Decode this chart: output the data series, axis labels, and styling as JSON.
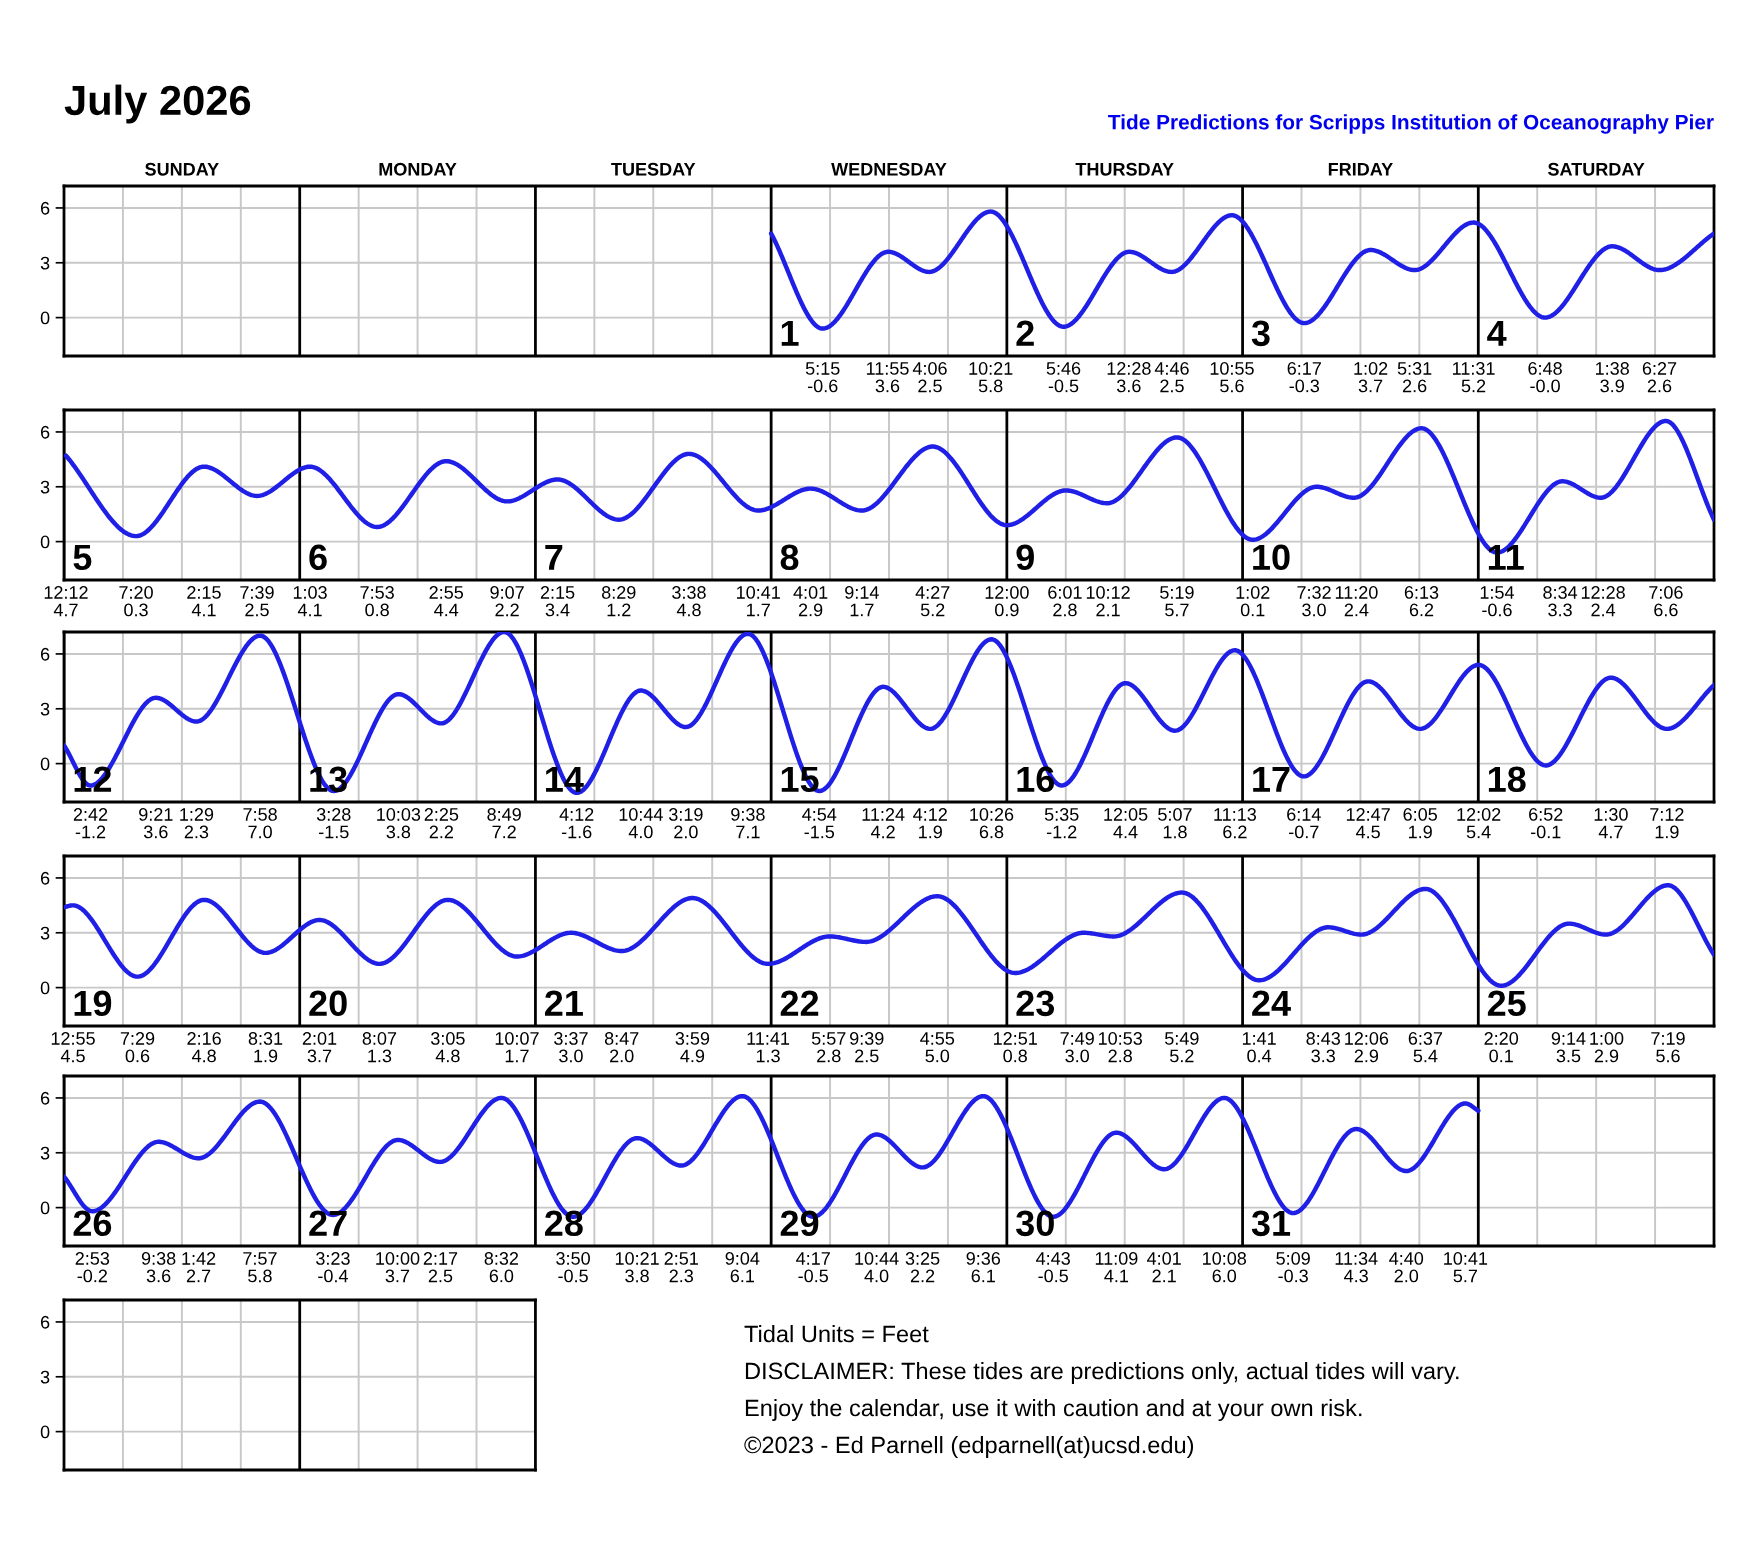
{
  "chart_data": [
    {
      "type": "line",
      "title": "July 2026",
      "subtitle": "Tide Predictions for Scripps Institution of Oceanography Pier",
      "series": [
        {
          "color": "#1f1fe6",
          "x": [
            "2026-07-01T00:00",
            "2026-07-01T05:15",
            "2026-07-01T11:55",
            "2026-07-01T16:06",
            "2026-07-01T22:21",
            "2026-07-02T05:46",
            "2026-07-02T12:28",
            "2026-07-02T16:46",
            "2026-07-02T22:55",
            "2026-07-03T06:17",
            "2026-07-03T13:02",
            "2026-07-03T17:31",
            "2026-07-03T23:31",
            "2026-07-04T06:48",
            "2026-07-04T13:38",
            "2026-07-04T18:27",
            "2026-07-05T00:00"
          ],
          "values": [
            4.6,
            -0.6,
            3.6,
            2.5,
            5.8,
            -0.5,
            3.6,
            2.5,
            5.6,
            -0.3,
            3.7,
            2.6,
            5.2,
            0.0,
            3.9,
            2.6,
            4.6
          ]
        }
      ],
      "xlim": [
        "2026-06-28",
        "2026-07-05"
      ],
      "ylim": [
        -2.1,
        7.2
      ],
      "yticks": [
        0,
        3,
        6
      ],
      "grid": true,
      "xticks": [
        {
          "value": "2026-06-28T06:00",
          "label": null
        },
        {
          "value": "2026-06-28T12:00",
          "label": null
        },
        {
          "value": "2026-06-28T18:00",
          "label": null
        },
        {
          "value": "2026-06-29T06:00",
          "label": null
        },
        {
          "value": "2026-06-29T12:00",
          "label": null
        },
        {
          "value": "2026-06-29T18:00",
          "label": null
        },
        {
          "value": "2026-06-30T06:00",
          "label": null
        },
        {
          "value": "2026-06-30T12:00",
          "label": null
        },
        {
          "value": "2026-06-30T18:00",
          "label": null
        },
        {
          "value": "2026-07-01T06:00",
          "label": null
        },
        {
          "value": "2026-07-01T12:00",
          "label": null
        },
        {
          "value": "2026-07-01T18:00",
          "label": null
        },
        {
          "value": "2026-07-02T06:00",
          "label": null
        },
        {
          "value": "2026-07-02T12:00",
          "label": null
        },
        {
          "value": "2026-07-02T18:00",
          "label": null
        },
        {
          "value": "2026-07-03T06:00",
          "label": null
        },
        {
          "value": "2026-07-03T12:00",
          "label": null
        },
        {
          "value": "2026-07-03T18:00",
          "label": null
        },
        {
          "value": "2026-07-04T06:00",
          "label": null
        },
        {
          "value": "2026-07-04T12:00",
          "label": null
        },
        {
          "value": "2026-07-04T18:00",
          "label": null
        },
        {
          "value": "2026-07-01T05:15",
          "label": "5:15\n-0.6"
        },
        {
          "value": "2026-07-01T11:55",
          "label": "11:55\n3.6"
        },
        {
          "value": "2026-07-01T16:06",
          "label": "4:06\n2.5"
        },
        {
          "value": "2026-07-01T22:21",
          "label": "10:21\n5.8"
        },
        {
          "value": "2026-07-02T05:46",
          "label": "5:46\n-0.5"
        },
        {
          "value": "2026-07-02T12:28",
          "label": "12:28\n3.6"
        },
        {
          "value": "2026-07-02T16:46",
          "label": "4:46\n2.5"
        },
        {
          "value": "2026-07-02T22:55",
          "label": "10:55\n5.6"
        },
        {
          "value": "2026-07-03T06:17",
          "label": "6:17\n-0.3"
        },
        {
          "value": "2026-07-03T13:02",
          "label": "1:02\n3.7"
        },
        {
          "value": "2026-07-03T17:31",
          "label": "5:31\n2.6"
        },
        {
          "value": "2026-07-03T23:31",
          "label": "11:31\n5.2"
        },
        {
          "value": "2026-07-04T06:48",
          "label": "6:48\n-0.0"
        },
        {
          "value": "2026-07-04T13:38",
          "label": "1:38\n3.9"
        },
        {
          "value": "2026-07-04T18:27",
          "label": "6:27\n2.6"
        }
      ],
      "annotations": [
        "SUNDAY",
        "MONDAY",
        "TUESDAY",
        "WEDNESDAY",
        "THURSDAY",
        "FRIDAY",
        "SATURDAY"
      ],
      "ref_lines": [
        {
          "axis": "x",
          "value": "2026-06-29",
          "color": "#000000"
        },
        {
          "axis": "x",
          "value": "2026-06-30",
          "color": "#000000"
        },
        {
          "axis": "x",
          "value": "2026-07-01",
          "color": "#000000",
          "label": "1"
        },
        {
          "axis": "x",
          "value": "2026-07-02",
          "color": "#000000",
          "label": "2"
        },
        {
          "axis": "x",
          "value": "2026-07-03",
          "color": "#000000",
          "label": "3"
        },
        {
          "axis": "x",
          "value": "2026-07-04",
          "color": "#000000",
          "label": "4"
        }
      ]
    },
    {
      "type": "line",
      "series": [
        {
          "color": "#1f1fe6",
          "x": [
            "2026-07-05T00:12",
            "2026-07-05T07:20",
            "2026-07-05T14:15",
            "2026-07-05T19:39",
            "2026-07-06T01:03",
            "2026-07-06T07:53",
            "2026-07-06T14:55",
            "2026-07-06T21:07",
            "2026-07-07T02:15",
            "2026-07-07T08:29",
            "2026-07-07T15:38",
            "2026-07-07T22:41",
            "2026-07-08T04:01",
            "2026-07-08T09:14",
            "2026-07-08T16:27",
            "2026-07-09T00:00",
            "2026-07-09T06:01",
            "2026-07-09T10:12",
            "2026-07-09T17:19",
            "2026-07-10T01:02",
            "2026-07-10T07:32",
            "2026-07-10T11:20",
            "2026-07-10T18:13",
            "2026-07-11T01:54",
            "2026-07-11T08:34",
            "2026-07-11T12:28",
            "2026-07-11T19:06",
            "2026-07-12T00:00"
          ],
          "values": [
            4.7,
            0.3,
            4.1,
            2.5,
            4.1,
            0.8,
            4.4,
            2.2,
            3.4,
            1.2,
            4.8,
            1.7,
            2.9,
            1.7,
            5.2,
            0.9,
            2.8,
            2.1,
            5.7,
            0.1,
            3.0,
            2.4,
            6.2,
            -0.6,
            3.3,
            2.4,
            6.6,
            1.2
          ]
        }
      ],
      "xlim": [
        "2026-07-05",
        "2026-07-12"
      ],
      "ylim": [
        -2.1,
        7.2
      ],
      "yticks": [
        0,
        3,
        6
      ],
      "grid": true,
      "xticks": [
        {
          "value": "2026-07-05T06:00",
          "label": null
        },
        {
          "value": "2026-07-05T12:00",
          "label": null
        },
        {
          "value": "2026-07-05T18:00",
          "label": null
        },
        {
          "value": "2026-07-06T06:00",
          "label": null
        },
        {
          "value": "2026-07-06T12:00",
          "label": null
        },
        {
          "value": "2026-07-06T18:00",
          "label": null
        },
        {
          "value": "2026-07-07T06:00",
          "label": null
        },
        {
          "value": "2026-07-07T12:00",
          "label": null
        },
        {
          "value": "2026-07-07T18:00",
          "label": null
        },
        {
          "value": "2026-07-08T06:00",
          "label": null
        },
        {
          "value": "2026-07-08T12:00",
          "label": null
        },
        {
          "value": "2026-07-08T18:00",
          "label": null
        },
        {
          "value": "2026-07-09T06:00",
          "label": null
        },
        {
          "value": "2026-07-09T12:00",
          "label": null
        },
        {
          "value": "2026-07-09T18:00",
          "label": null
        },
        {
          "value": "2026-07-10T06:00",
          "label": null
        },
        {
          "value": "2026-07-10T12:00",
          "label": null
        },
        {
          "value": "2026-07-10T18:00",
          "label": null
        },
        {
          "value": "2026-07-11T06:00",
          "label": null
        },
        {
          "value": "2026-07-11T12:00",
          "label": null
        },
        {
          "value": "2026-07-11T18:00",
          "label": null
        },
        {
          "value": "2026-07-05T00:12",
          "label": "12:12\n4.7"
        },
        {
          "value": "2026-07-05T07:20",
          "label": "7:20\n0.3"
        },
        {
          "value": "2026-07-05T14:15",
          "label": "2:15\n4.1"
        },
        {
          "value": "2026-07-05T19:39",
          "label": "7:39\n2.5"
        },
        {
          "value": "2026-07-06T01:03",
          "label": "1:03\n4.1"
        },
        {
          "value": "2026-07-06T07:53",
          "label": "7:53\n0.8"
        },
        {
          "value": "2026-07-06T14:55",
          "label": "2:55\n4.4"
        },
        {
          "value": "2026-07-06T21:07",
          "label": "9:07\n2.2"
        },
        {
          "value": "2026-07-07T02:15",
          "label": "2:15\n3.4"
        },
        {
          "value": "2026-07-07T08:29",
          "label": "8:29\n1.2"
        },
        {
          "value": "2026-07-07T15:38",
          "label": "3:38\n4.8"
        },
        {
          "value": "2026-07-07T22:41",
          "label": "10:41\n1.7"
        },
        {
          "value": "2026-07-08T04:01",
          "label": "4:01\n2.9"
        },
        {
          "value": "2026-07-08T09:14",
          "label": "9:14\n1.7"
        },
        {
          "value": "2026-07-08T16:27",
          "label": "4:27\n5.2"
        },
        {
          "value": "2026-07-09T00:00",
          "label": "12:00\n0.9"
        },
        {
          "value": "2026-07-09T06:01",
          "label": "6:01\n2.8"
        },
        {
          "value": "2026-07-09T10:12",
          "label": "10:12\n2.1"
        },
        {
          "value": "2026-07-09T17:19",
          "label": "5:19\n5.7"
        },
        {
          "value": "2026-07-10T01:02",
          "label": "1:02\n0.1"
        },
        {
          "value": "2026-07-10T07:32",
          "label": "7:32\n3.0"
        },
        {
          "value": "2026-07-10T11:20",
          "label": "11:20\n2.4"
        },
        {
          "value": "2026-07-10T18:13",
          "label": "6:13\n6.2"
        },
        {
          "value": "2026-07-11T01:54",
          "label": "1:54\n-0.6"
        },
        {
          "value": "2026-07-11T08:34",
          "label": "8:34\n3.3"
        },
        {
          "value": "2026-07-11T12:28",
          "label": "12:28\n2.4"
        },
        {
          "value": "2026-07-11T19:06",
          "label": "7:06\n6.6"
        }
      ],
      "ref_lines": [
        {
          "axis": "x",
          "value": "2026-07-05",
          "color": "#000000",
          "label": "5"
        },
        {
          "axis": "x",
          "value": "2026-07-06",
          "color": "#000000",
          "label": "6"
        },
        {
          "axis": "x",
          "value": "2026-07-07",
          "color": "#000000",
          "label": "7"
        },
        {
          "axis": "x",
          "value": "2026-07-08",
          "color": "#000000",
          "label": "8"
        },
        {
          "axis": "x",
          "value": "2026-07-09",
          "color": "#000000",
          "label": "9"
        },
        {
          "axis": "x",
          "value": "2026-07-10",
          "color": "#000000",
          "label": "10"
        },
        {
          "axis": "x",
          "value": "2026-07-11",
          "color": "#000000",
          "label": "11"
        }
      ]
    },
    {
      "type": "line",
      "series": [
        {
          "color": "#1f1fe6",
          "x": [
            "2026-07-12T00:00",
            "2026-07-12T02:42",
            "2026-07-12T09:21",
            "2026-07-12T13:29",
            "2026-07-12T19:58",
            "2026-07-13T03:28",
            "2026-07-13T10:03",
            "2026-07-13T14:25",
            "2026-07-13T20:49",
            "2026-07-14T04:12",
            "2026-07-14T10:44",
            "2026-07-14T15:19",
            "2026-07-14T21:38",
            "2026-07-15T04:54",
            "2026-07-15T11:24",
            "2026-07-15T16:12",
            "2026-07-15T22:26",
            "2026-07-16T05:35",
            "2026-07-16T12:05",
            "2026-07-16T17:07",
            "2026-07-16T23:13",
            "2026-07-17T06:14",
            "2026-07-17T12:47",
            "2026-07-17T18:05",
            "2026-07-18T00:02",
            "2026-07-18T06:52",
            "2026-07-18T13:30",
            "2026-07-18T19:12",
            "2026-07-19T00:00"
          ],
          "values": [
            1.0,
            -1.2,
            3.6,
            2.3,
            7.0,
            -1.5,
            3.8,
            2.2,
            7.2,
            -1.6,
            4.0,
            2.0,
            7.1,
            -1.5,
            4.2,
            1.9,
            6.8,
            -1.2,
            4.4,
            1.8,
            6.2,
            -0.7,
            4.5,
            1.9,
            5.4,
            -0.1,
            4.7,
            1.9,
            4.3
          ]
        }
      ],
      "xlim": [
        "2026-07-12",
        "2026-07-19"
      ],
      "ylim": [
        -2.1,
        7.2
      ],
      "yticks": [
        0,
        3,
        6
      ],
      "grid": true,
      "xticks": [
        {
          "value": "2026-07-12T06:00",
          "label": null
        },
        {
          "value": "2026-07-12T12:00",
          "label": null
        },
        {
          "value": "2026-07-12T18:00",
          "label": null
        },
        {
          "value": "2026-07-13T06:00",
          "label": null
        },
        {
          "value": "2026-07-13T12:00",
          "label": null
        },
        {
          "value": "2026-07-13T18:00",
          "label": null
        },
        {
          "value": "2026-07-14T06:00",
          "label": null
        },
        {
          "value": "2026-07-14T12:00",
          "label": null
        },
        {
          "value": "2026-07-14T18:00",
          "label": null
        },
        {
          "value": "2026-07-15T06:00",
          "label": null
        },
        {
          "value": "2026-07-15T12:00",
          "label": null
        },
        {
          "value": "2026-07-15T18:00",
          "label": null
        },
        {
          "value": "2026-07-16T06:00",
          "label": null
        },
        {
          "value": "2026-07-16T12:00",
          "label": null
        },
        {
          "value": "2026-07-16T18:00",
          "label": null
        },
        {
          "value": "2026-07-17T06:00",
          "label": null
        },
        {
          "value": "2026-07-17T12:00",
          "label": null
        },
        {
          "value": "2026-07-17T18:00",
          "label": null
        },
        {
          "value": "2026-07-18T06:00",
          "label": null
        },
        {
          "value": "2026-07-18T12:00",
          "label": null
        },
        {
          "value": "2026-07-18T18:00",
          "label": null
        },
        {
          "value": "2026-07-12T02:42",
          "label": "2:42\n-1.2"
        },
        {
          "value": "2026-07-12T09:21",
          "label": "9:21\n3.6"
        },
        {
          "value": "2026-07-12T13:29",
          "label": "1:29\n2.3"
        },
        {
          "value": "2026-07-12T19:58",
          "label": "7:58\n7.0"
        },
        {
          "value": "2026-07-13T03:28",
          "label": "3:28\n-1.5"
        },
        {
          "value": "2026-07-13T10:03",
          "label": "10:03\n3.8"
        },
        {
          "value": "2026-07-13T14:25",
          "label": "2:25\n2.2"
        },
        {
          "value": "2026-07-13T20:49",
          "label": "8:49\n7.2"
        },
        {
          "value": "2026-07-14T04:12",
          "label": "4:12\n-1.6"
        },
        {
          "value": "2026-07-14T10:44",
          "label": "10:44\n4.0"
        },
        {
          "value": "2026-07-14T15:19",
          "label": "3:19\n2.0"
        },
        {
          "value": "2026-07-14T21:38",
          "label": "9:38\n7.1"
        },
        {
          "value": "2026-07-15T04:54",
          "label": "4:54\n-1.5"
        },
        {
          "value": "2026-07-15T11:24",
          "label": "11:24\n4.2"
        },
        {
          "value": "2026-07-15T16:12",
          "label": "4:12\n1.9"
        },
        {
          "value": "2026-07-15T22:26",
          "label": "10:26\n6.8"
        },
        {
          "value": "2026-07-16T05:35",
          "label": "5:35\n-1.2"
        },
        {
          "value": "2026-07-16T12:05",
          "label": "12:05\n4.4"
        },
        {
          "value": "2026-07-16T17:07",
          "label": "5:07\n1.8"
        },
        {
          "value": "2026-07-16T23:13",
          "label": "11:13\n6.2"
        },
        {
          "value": "2026-07-17T06:14",
          "label": "6:14\n-0.7"
        },
        {
          "value": "2026-07-17T12:47",
          "label": "12:47\n4.5"
        },
        {
          "value": "2026-07-17T18:05",
          "label": "6:05\n1.9"
        },
        {
          "value": "2026-07-18T00:02",
          "label": "12:02\n5.4"
        },
        {
          "value": "2026-07-18T06:52",
          "label": "6:52\n-0.1"
        },
        {
          "value": "2026-07-18T13:30",
          "label": "1:30\n4.7"
        },
        {
          "value": "2026-07-18T19:12",
          "label": "7:12\n1.9"
        }
      ],
      "ref_lines": [
        {
          "axis": "x",
          "value": "2026-07-12",
          "color": "#000000",
          "label": "12"
        },
        {
          "axis": "x",
          "value": "2026-07-13",
          "color": "#000000",
          "label": "13"
        },
        {
          "axis": "x",
          "value": "2026-07-14",
          "color": "#000000",
          "label": "14"
        },
        {
          "axis": "x",
          "value": "2026-07-15",
          "color": "#000000",
          "label": "15"
        },
        {
          "axis": "x",
          "value": "2026-07-16",
          "color": "#000000",
          "label": "16"
        },
        {
          "axis": "x",
          "value": "2026-07-17",
          "color": "#000000",
          "label": "17"
        },
        {
          "axis": "x",
          "value": "2026-07-18",
          "color": "#000000",
          "label": "18"
        }
      ]
    },
    {
      "type": "line",
      "series": [
        {
          "color": "#1f1fe6",
          "x": [
            "2026-07-19T00:00",
            "2026-07-19T00:55",
            "2026-07-19T07:29",
            "2026-07-19T14:16",
            "2026-07-19T20:31",
            "2026-07-20T02:01",
            "2026-07-20T08:07",
            "2026-07-20T15:05",
            "2026-07-20T22:07",
            "2026-07-21T03:37",
            "2026-07-21T08:47",
            "2026-07-21T15:59",
            "2026-07-21T23:41",
            "2026-07-22T05:57",
            "2026-07-22T09:39",
            "2026-07-22T16:55",
            "2026-07-23T00:51",
            "2026-07-23T07:49",
            "2026-07-23T10:53",
            "2026-07-23T17:49",
            "2026-07-24T01:41",
            "2026-07-24T08:43",
            "2026-07-24T12:06",
            "2026-07-24T18:37",
            "2026-07-25T02:20",
            "2026-07-25T09:14",
            "2026-07-25T13:00",
            "2026-07-25T19:19",
            "2026-07-26T00:00"
          ],
          "values": [
            4.4,
            4.5,
            0.6,
            4.8,
            1.9,
            3.7,
            1.3,
            4.8,
            1.7,
            3.0,
            2.0,
            4.9,
            1.3,
            2.8,
            2.5,
            5.0,
            0.8,
            3.0,
            2.8,
            5.2,
            0.4,
            3.3,
            2.9,
            5.4,
            0.1,
            3.5,
            2.9,
            5.6,
            1.8
          ]
        }
      ],
      "xlim": [
        "2026-07-19",
        "2026-07-26"
      ],
      "ylim": [
        -2.1,
        7.2
      ],
      "yticks": [
        0,
        3,
        6
      ],
      "grid": true,
      "xticks": [
        {
          "value": "2026-07-19T06:00",
          "label": null
        },
        {
          "value": "2026-07-19T12:00",
          "label": null
        },
        {
          "value": "2026-07-19T18:00",
          "label": null
        },
        {
          "value": "2026-07-20T06:00",
          "label": null
        },
        {
          "value": "2026-07-20T12:00",
          "label": null
        },
        {
          "value": "2026-07-20T18:00",
          "label": null
        },
        {
          "value": "2026-07-21T06:00",
          "label": null
        },
        {
          "value": "2026-07-21T12:00",
          "label": null
        },
        {
          "value": "2026-07-21T18:00",
          "label": null
        },
        {
          "value": "2026-07-22T06:00",
          "label": null
        },
        {
          "value": "2026-07-22T12:00",
          "label": null
        },
        {
          "value": "2026-07-22T18:00",
          "label": null
        },
        {
          "value": "2026-07-23T06:00",
          "label": null
        },
        {
          "value": "2026-07-23T12:00",
          "label": null
        },
        {
          "value": "2026-07-23T18:00",
          "label": null
        },
        {
          "value": "2026-07-24T06:00",
          "label": null
        },
        {
          "value": "2026-07-24T12:00",
          "label": null
        },
        {
          "value": "2026-07-24T18:00",
          "label": null
        },
        {
          "value": "2026-07-25T06:00",
          "label": null
        },
        {
          "value": "2026-07-25T12:00",
          "label": null
        },
        {
          "value": "2026-07-25T18:00",
          "label": null
        },
        {
          "value": "2026-07-19T00:55",
          "label": "12:55\n4.5"
        },
        {
          "value": "2026-07-19T07:29",
          "label": "7:29\n0.6"
        },
        {
          "value": "2026-07-19T14:16",
          "label": "2:16\n4.8"
        },
        {
          "value": "2026-07-19T20:31",
          "label": "8:31\n1.9"
        },
        {
          "value": "2026-07-20T02:01",
          "label": "2:01\n3.7"
        },
        {
          "value": "2026-07-20T08:07",
          "label": "8:07\n1.3"
        },
        {
          "value": "2026-07-20T15:05",
          "label": "3:05\n4.8"
        },
        {
          "value": "2026-07-20T22:07",
          "label": "10:07\n1.7"
        },
        {
          "value": "2026-07-21T03:37",
          "label": "3:37\n3.0"
        },
        {
          "value": "2026-07-21T08:47",
          "label": "8:47\n2.0"
        },
        {
          "value": "2026-07-21T15:59",
          "label": "3:59\n4.9"
        },
        {
          "value": "2026-07-21T23:41",
          "label": "11:41\n1.3"
        },
        {
          "value": "2026-07-22T05:57",
          "label": "5:57\n2.8"
        },
        {
          "value": "2026-07-22T09:39",
          "label": "9:39\n2.5"
        },
        {
          "value": "2026-07-22T16:55",
          "label": "4:55\n5.0"
        },
        {
          "value": "2026-07-23T00:51",
          "label": "12:51\n0.8"
        },
        {
          "value": "2026-07-23T07:49",
          "label": "7:49\n3.0"
        },
        {
          "value": "2026-07-23T10:53",
          "label": "10:53\n2.8"
        },
        {
          "value": "2026-07-23T17:49",
          "label": "5:49\n5.2"
        },
        {
          "value": "2026-07-24T01:41",
          "label": "1:41\n0.4"
        },
        {
          "value": "2026-07-24T08:43",
          "label": "8:43\n3.3"
        },
        {
          "value": "2026-07-24T12:06",
          "label": "12:06\n2.9"
        },
        {
          "value": "2026-07-24T18:37",
          "label": "6:37\n5.4"
        },
        {
          "value": "2026-07-25T02:20",
          "label": "2:20\n0.1"
        },
        {
          "value": "2026-07-25T09:14",
          "label": "9:14\n3.5"
        },
        {
          "value": "2026-07-25T13:00",
          "label": "1:00\n2.9"
        },
        {
          "value": "2026-07-25T19:19",
          "label": "7:19\n5.6"
        }
      ],
      "ref_lines": [
        {
          "axis": "x",
          "value": "2026-07-19",
          "color": "#000000",
          "label": "19"
        },
        {
          "axis": "x",
          "value": "2026-07-20",
          "color": "#000000",
          "label": "20"
        },
        {
          "axis": "x",
          "value": "2026-07-21",
          "color": "#000000",
          "label": "21"
        },
        {
          "axis": "x",
          "value": "2026-07-22",
          "color": "#000000",
          "label": "22"
        },
        {
          "axis": "x",
          "value": "2026-07-23",
          "color": "#000000",
          "label": "23"
        },
        {
          "axis": "x",
          "value": "2026-07-24",
          "color": "#000000",
          "label": "24"
        },
        {
          "axis": "x",
          "value": "2026-07-25",
          "color": "#000000",
          "label": "25"
        }
      ]
    },
    {
      "type": "line",
      "series": [
        {
          "color": "#1f1fe6",
          "x": [
            "2026-07-26T00:00",
            "2026-07-26T02:53",
            "2026-07-26T09:38",
            "2026-07-26T13:42",
            "2026-07-26T19:57",
            "2026-07-27T03:23",
            "2026-07-27T10:00",
            "2026-07-27T14:17",
            "2026-07-27T20:32",
            "2026-07-28T03:50",
            "2026-07-28T10:21",
            "2026-07-28T14:51",
            "2026-07-28T21:04",
            "2026-07-29T04:17",
            "2026-07-29T10:44",
            "2026-07-29T15:25",
            "2026-07-29T21:36",
            "2026-07-30T04:43",
            "2026-07-30T11:09",
            "2026-07-30T16:01",
            "2026-07-30T22:08",
            "2026-07-31T05:09",
            "2026-07-31T11:34",
            "2026-07-31T16:40",
            "2026-07-31T22:41",
            "2026-08-01T00:00"
          ],
          "values": [
            1.7,
            -0.2,
            3.6,
            2.7,
            5.8,
            -0.4,
            3.7,
            2.5,
            6.0,
            -0.5,
            3.8,
            2.3,
            6.1,
            -0.5,
            4.0,
            2.2,
            6.1,
            -0.5,
            4.1,
            2.1,
            6.0,
            -0.3,
            4.3,
            2.0,
            5.7,
            5.3
          ]
        }
      ],
      "xlim": [
        "2026-07-26",
        "2026-08-02"
      ],
      "ylim": [
        -2.1,
        7.2
      ],
      "yticks": [
        0,
        3,
        6
      ],
      "grid": true,
      "xticks": [
        {
          "value": "2026-07-26T06:00",
          "label": null
        },
        {
          "value": "2026-07-26T12:00",
          "label": null
        },
        {
          "value": "2026-07-26T18:00",
          "label": null
        },
        {
          "value": "2026-07-27T06:00",
          "label": null
        },
        {
          "value": "2026-07-27T12:00",
          "label": null
        },
        {
          "value": "2026-07-27T18:00",
          "label": null
        },
        {
          "value": "2026-07-28T06:00",
          "label": null
        },
        {
          "value": "2026-07-28T12:00",
          "label": null
        },
        {
          "value": "2026-07-28T18:00",
          "label": null
        },
        {
          "value": "2026-07-29T06:00",
          "label": null
        },
        {
          "value": "2026-07-29T12:00",
          "label": null
        },
        {
          "value": "2026-07-29T18:00",
          "label": null
        },
        {
          "value": "2026-07-30T06:00",
          "label": null
        },
        {
          "value": "2026-07-30T12:00",
          "label": null
        },
        {
          "value": "2026-07-30T18:00",
          "label": null
        },
        {
          "value": "2026-07-31T06:00",
          "label": null
        },
        {
          "value": "2026-07-31T12:00",
          "label": null
        },
        {
          "value": "2026-07-31T18:00",
          "label": null
        },
        {
          "value": "2026-08-01T06:00",
          "label": null
        },
        {
          "value": "2026-08-01T12:00",
          "label": null
        },
        {
          "value": "2026-08-01T18:00",
          "label": null
        },
        {
          "value": "2026-07-26T02:53",
          "label": "2:53\n-0.2"
        },
        {
          "value": "2026-07-26T09:38",
          "label": "9:38\n3.6"
        },
        {
          "value": "2026-07-26T13:42",
          "label": "1:42\n2.7"
        },
        {
          "value": "2026-07-26T19:57",
          "label": "7:57\n5.8"
        },
        {
          "value": "2026-07-27T03:23",
          "label": "3:23\n-0.4"
        },
        {
          "value": "2026-07-27T10:00",
          "label": "10:00\n3.7"
        },
        {
          "value": "2026-07-27T14:17",
          "label": "2:17\n2.5"
        },
        {
          "value": "2026-07-27T20:32",
          "label": "8:32\n6.0"
        },
        {
          "value": "2026-07-28T03:50",
          "label": "3:50\n-0.5"
        },
        {
          "value": "2026-07-28T10:21",
          "label": "10:21\n3.8"
        },
        {
          "value": "2026-07-28T14:51",
          "label": "2:51\n2.3"
        },
        {
          "value": "2026-07-28T21:04",
          "label": "9:04\n6.1"
        },
        {
          "value": "2026-07-29T04:17",
          "label": "4:17\n-0.5"
        },
        {
          "value": "2026-07-29T10:44",
          "label": "10:44\n4.0"
        },
        {
          "value": "2026-07-29T15:25",
          "label": "3:25\n2.2"
        },
        {
          "value": "2026-07-29T21:36",
          "label": "9:36\n6.1"
        },
        {
          "value": "2026-07-30T04:43",
          "label": "4:43\n-0.5"
        },
        {
          "value": "2026-07-30T11:09",
          "label": "11:09\n4.1"
        },
        {
          "value": "2026-07-30T16:01",
          "label": "4:01\n2.1"
        },
        {
          "value": "2026-07-30T22:08",
          "label": "10:08\n6.0"
        },
        {
          "value": "2026-07-31T05:09",
          "label": "5:09\n-0.3"
        },
        {
          "value": "2026-07-31T11:34",
          "label": "11:34\n4.3"
        },
        {
          "value": "2026-07-31T16:40",
          "label": "4:40\n2.0"
        },
        {
          "value": "2026-07-31T22:41",
          "label": "10:41\n5.7"
        }
      ],
      "ref_lines": [
        {
          "axis": "x",
          "value": "2026-07-26",
          "color": "#000000",
          "label": "26"
        },
        {
          "axis": "x",
          "value": "2026-07-27",
          "color": "#000000",
          "label": "27"
        },
        {
          "axis": "x",
          "value": "2026-07-28",
          "color": "#000000",
          "label": "28"
        },
        {
          "axis": "x",
          "value": "2026-07-29",
          "color": "#000000",
          "label": "29"
        },
        {
          "axis": "x",
          "value": "2026-07-30",
          "color": "#000000",
          "label": "30"
        },
        {
          "axis": "x",
          "value": "2026-07-31",
          "color": "#000000",
          "label": "31"
        },
        {
          "axis": "x",
          "value": "2026-08-01",
          "color": "#000000"
        }
      ]
    },
    {
      "type": "line",
      "categories": [
        null,
        null
      ],
      "ylim": [
        -2.1,
        7.2
      ],
      "yticks": [
        0,
        3,
        6
      ],
      "grid": true,
      "tick_labels": "y",
      "annotations": [
        "Tidal Units = Feet",
        "DISCLAIMER: These tides are predictions only, actual tides will vary.",
        "Enjoy the calendar, use it with caution and at your own risk.",
        "©2023 - Ed Parnell (edparnell(at)ucsd.edu)"
      ]
    }
  ]
}
